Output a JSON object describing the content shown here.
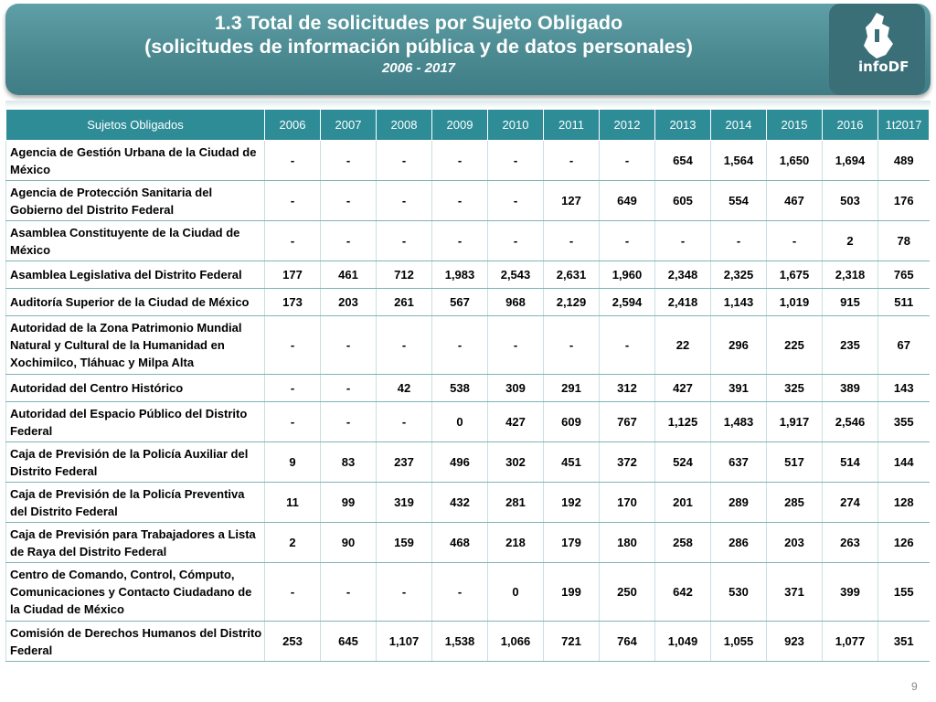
{
  "header": {
    "title_line1": "1.3 Total de solicitudes por Sujeto Obligado",
    "title_line2": "(solicitudes de información pública y de datos personales)",
    "title_line3": "2006 - 2017",
    "logo_text": "infoDF"
  },
  "table": {
    "columns": [
      "Sujetos Obligados",
      "2006",
      "2007",
      "2008",
      "2009",
      "2010",
      "2011",
      "2012",
      "2013",
      "2014",
      "2015",
      "2016",
      "1t2017"
    ],
    "rows": [
      {
        "name": "Agencia de Gestión Urbana de la Ciudad de México",
        "values": [
          "-",
          "-",
          "-",
          "-",
          "-",
          "-",
          "-",
          "654",
          "1,564",
          "1,650",
          "1,694",
          "489"
        ]
      },
      {
        "name": "Agencia de Protección Sanitaria del Gobierno del Distrito Federal",
        "values": [
          "-",
          "-",
          "-",
          "-",
          "-",
          "127",
          "649",
          "605",
          "554",
          "467",
          "503",
          "176"
        ]
      },
      {
        "name": "Asamblea Constituyente de la Ciudad de México",
        "values": [
          "-",
          "-",
          "-",
          "-",
          "-",
          "-",
          "-",
          "-",
          "-",
          "-",
          "2",
          "78"
        ]
      },
      {
        "name": "Asamblea Legislativa del Distrito Federal",
        "values": [
          "177",
          "461",
          "712",
          "1,983",
          "2,543",
          "2,631",
          "1,960",
          "2,348",
          "2,325",
          "1,675",
          "2,318",
          "765"
        ]
      },
      {
        "name": "Auditoría Superior de la Ciudad de México",
        "values": [
          "173",
          "203",
          "261",
          "567",
          "968",
          "2,129",
          "2,594",
          "2,418",
          "1,143",
          "1,019",
          "915",
          "511"
        ]
      },
      {
        "name": "Autoridad de la Zona Patrimonio Mundial Natural y Cultural de la Humanidad en Xochimilco, Tláhuac y Milpa Alta",
        "values": [
          "-",
          "-",
          "-",
          "-",
          "-",
          "-",
          "-",
          "22",
          "296",
          "225",
          "235",
          "67"
        ]
      },
      {
        "name": "Autoridad del Centro Histórico",
        "values": [
          "-",
          "-",
          "42",
          "538",
          "309",
          "291",
          "312",
          "427",
          "391",
          "325",
          "389",
          "143"
        ]
      },
      {
        "name": "Autoridad del Espacio Público del Distrito Federal",
        "values": [
          "-",
          "-",
          "-",
          "0",
          "427",
          "609",
          "767",
          "1,125",
          "1,483",
          "1,917",
          "2,546",
          "355"
        ]
      },
      {
        "name": "Caja de Previsión de la Policía Auxiliar del Distrito Federal",
        "values": [
          "9",
          "83",
          "237",
          "496",
          "302",
          "451",
          "372",
          "524",
          "637",
          "517",
          "514",
          "144"
        ]
      },
      {
        "name": "Caja de Previsión de la Policía Preventiva del Distrito Federal",
        "values": [
          "11",
          "99",
          "319",
          "432",
          "281",
          "192",
          "170",
          "201",
          "289",
          "285",
          "274",
          "128"
        ]
      },
      {
        "name": "Caja de Previsión para Trabajadores a Lista de Raya del Distrito Federal",
        "values": [
          "2",
          "90",
          "159",
          "468",
          "218",
          "179",
          "180",
          "258",
          "286",
          "203",
          "263",
          "126"
        ]
      },
      {
        "name": "Centro de Comando, Control, Cómputo, Comunicaciones y Contacto Ciudadano de la Ciudad de México",
        "values": [
          "-",
          "-",
          "-",
          "-",
          "0",
          "199",
          "250",
          "642",
          "530",
          "371",
          "399",
          "155"
        ]
      },
      {
        "name": "Comisión de Derechos Humanos del Distrito Federal",
        "values": [
          "253",
          "645",
          "1,107",
          "1,538",
          "1,066",
          "721",
          "764",
          "1,049",
          "1,055",
          "923",
          "1,077",
          "351"
        ]
      }
    ]
  },
  "footer": {
    "page_number": "9"
  }
}
